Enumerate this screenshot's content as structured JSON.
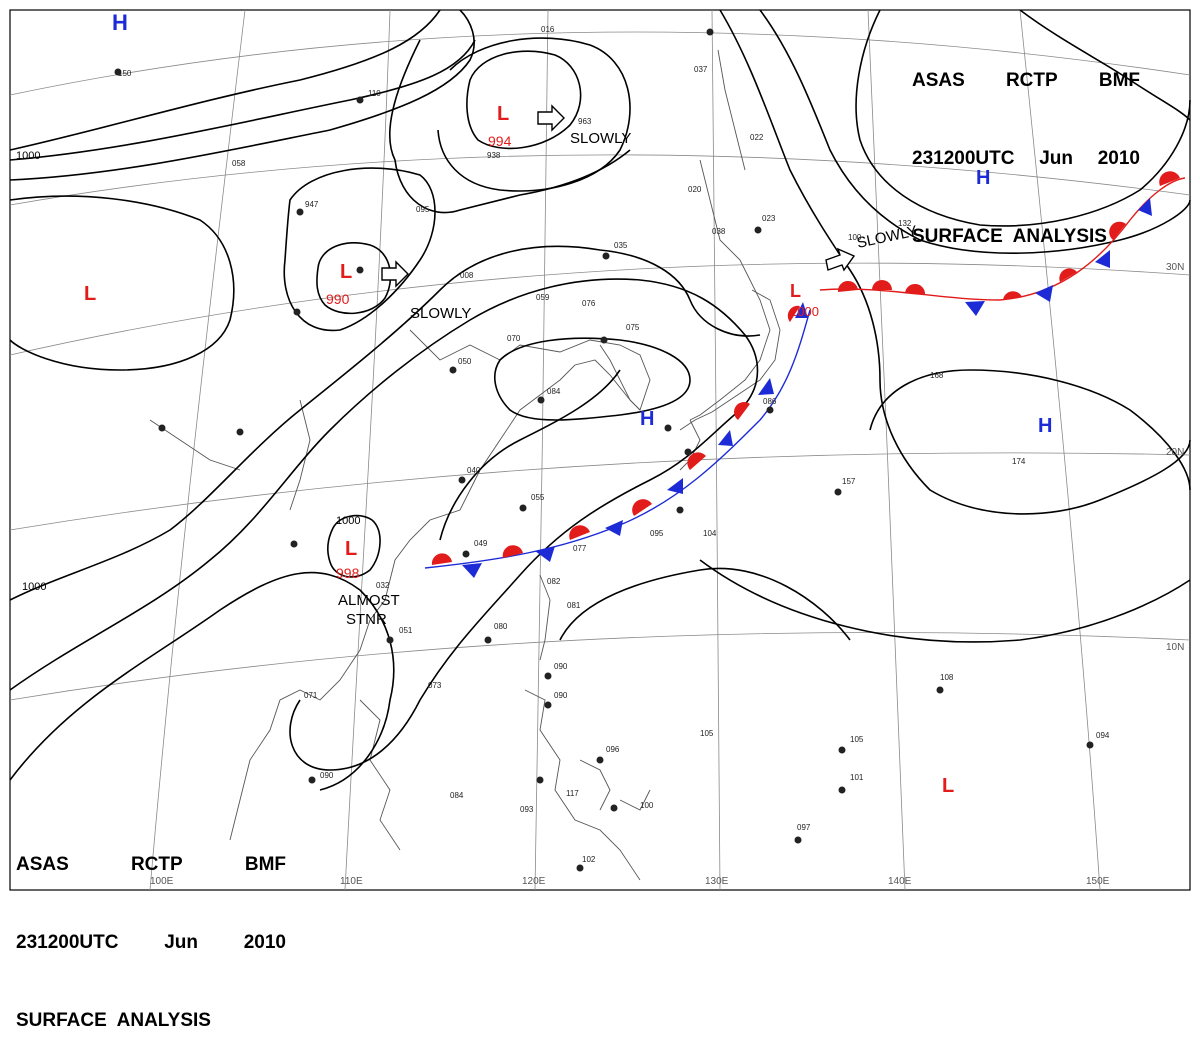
{
  "header": {
    "line1": [
      "ASAS",
      "RCTP",
      "BMF"
    ],
    "line2": [
      "231200UTC",
      "Jun",
      "2010"
    ],
    "line3": "SURFACE  ANALYSIS"
  },
  "colors": {
    "high": "#1c2bd6",
    "low": "#e21b1b",
    "warm_front": "#e21b1b",
    "cold_front": "#1c2bd6",
    "isobar": "#000000",
    "grid": "#8a8a8a",
    "coast": "#555555"
  },
  "pressure_centers": [
    {
      "type": "H",
      "color": "high"
    },
    {
      "type": "L",
      "color": "low",
      "value": "994"
    },
    {
      "type": "L",
      "color": "low",
      "value": "990"
    },
    {
      "type": "L",
      "color": "low",
      "value": "998"
    },
    {
      "type": "L",
      "color": "low"
    },
    {
      "type": "H",
      "color": "high"
    },
    {
      "type": "H",
      "color": "high"
    },
    {
      "type": "H",
      "color": "high"
    },
    {
      "type": "L",
      "color": "low",
      "value": "1000"
    },
    {
      "type": "L",
      "color": "low"
    }
  ],
  "isobar_labels": [
    "1000",
    "1000",
    "1000"
  ],
  "motion_labels": [
    "SLOWLY",
    "SLOWLY",
    "SLOWLY",
    "ALMOST",
    "STNR"
  ],
  "lon_labels": [
    "100E",
    "110E",
    "120E",
    "130E",
    "140E",
    "150E"
  ],
  "lat_labels": [
    "30N",
    "20N",
    "10N"
  ],
  "station_numbers": [
    "016",
    "150",
    "110",
    "058",
    "947",
    "963",
    "938",
    "095",
    "008",
    "059",
    "076",
    "075",
    "070",
    "050",
    "040",
    "055",
    "049",
    "032",
    "051",
    "080",
    "090",
    "090",
    "071",
    "073",
    "084",
    "090",
    "117",
    "096",
    "105",
    "100",
    "084",
    "082",
    "081",
    "077",
    "095",
    "104",
    "102",
    "093",
    "097",
    "105",
    "101",
    "094",
    "108",
    "157",
    "174",
    "168",
    "086",
    "038",
    "035",
    "023",
    "020",
    "037",
    "022",
    "132",
    "100"
  ]
}
